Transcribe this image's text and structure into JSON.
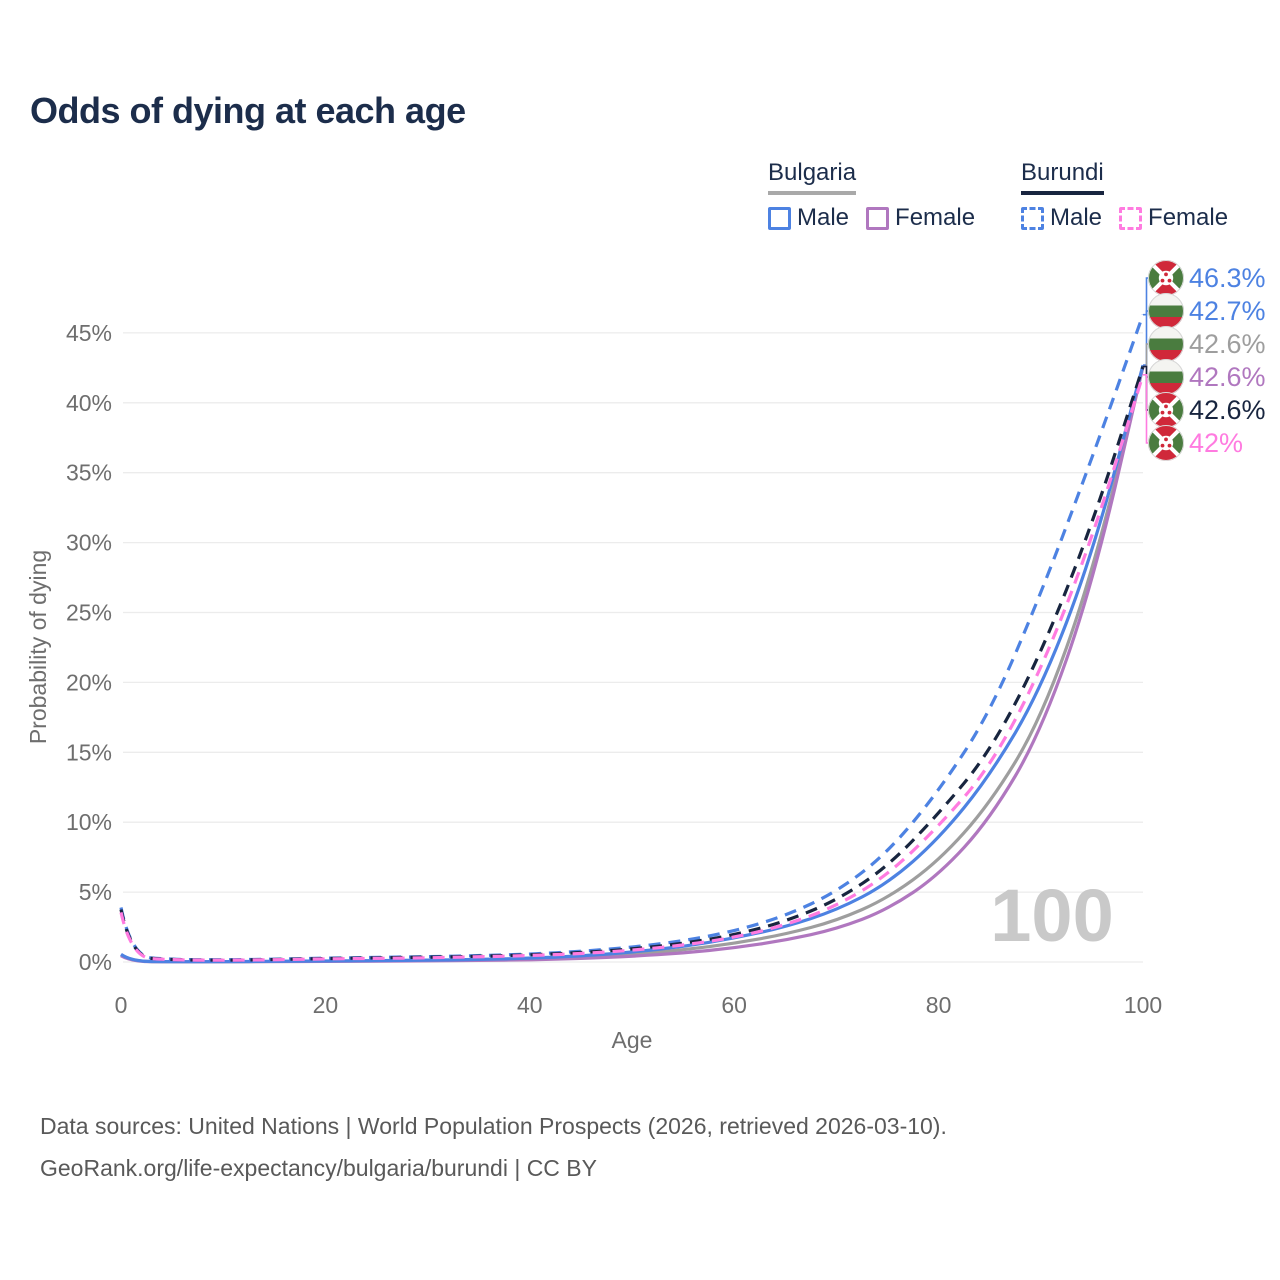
{
  "title": "Odds of dying at each age",
  "colors": {
    "blue": "#4d82e2",
    "purple": "#b077bf",
    "pink": "#ff7be0",
    "navy": "#18253f",
    "gray_line": "#9e9e9e",
    "grid": "#ececec",
    "axis_text": "#6e6e6e",
    "heading_text": "#1c2d4b",
    "watermark": "#c9c9c9",
    "footer_text": "#595959",
    "flag_white": "#f4f4f1",
    "flag_green": "#4a7c3f",
    "flag_red": "#d0283a"
  },
  "legend": {
    "groups": [
      {
        "name": "Bulgaria",
        "line_style": "solid",
        "underline_color": "#a9a9a9",
        "items": [
          {
            "label": "Male",
            "color": "#4d82e2"
          },
          {
            "label": "Female",
            "color": "#b077bf"
          }
        ]
      },
      {
        "name": "Burundi",
        "line_style": "dashed",
        "underline_color": "#18253f",
        "items": [
          {
            "label": "Male",
            "color": "#4d82e2"
          },
          {
            "label": "Female",
            "color": "#ff7be0"
          }
        ]
      }
    ]
  },
  "chart_data": {
    "type": "line",
    "title": "Odds of dying at each age",
    "xlabel": "Age",
    "ylabel": "Probability of dying",
    "xlim": [
      0,
      100
    ],
    "ylim": [
      0,
      47
    ],
    "x_ticks": [
      0,
      20,
      40,
      60,
      80,
      100
    ],
    "y_ticks": [
      0,
      5,
      10,
      15,
      20,
      25,
      30,
      35,
      40,
      45
    ],
    "grid": "horizontal",
    "watermark": "100",
    "x": [
      0,
      1,
      5,
      10,
      15,
      20,
      25,
      30,
      35,
      40,
      45,
      50,
      55,
      60,
      65,
      70,
      75,
      80,
      85,
      90,
      95,
      100
    ],
    "series": [
      {
        "id": "burundi-male",
        "name": "Burundi Male",
        "flag": "burundi",
        "color": "#4d82e2",
        "dashed": true,
        "end_label": "46.3%",
        "values": [
          3.9,
          0.4,
          0.18,
          0.15,
          0.2,
          0.28,
          0.33,
          0.38,
          0.46,
          0.56,
          0.76,
          1.05,
          1.5,
          2.2,
          3.3,
          5.0,
          7.8,
          12.2,
          17.8,
          26.3,
          36.0,
          46.3
        ]
      },
      {
        "id": "bulgaria-male",
        "name": "Bulgaria Male",
        "flag": "bulgaria",
        "color": "#4d82e2",
        "dashed": false,
        "end_label": "42.7%",
        "values": [
          0.55,
          0.04,
          0.02,
          0.02,
          0.05,
          0.08,
          0.1,
          0.13,
          0.18,
          0.27,
          0.43,
          0.7,
          1.1,
          1.7,
          2.5,
          3.7,
          5.6,
          8.8,
          13.3,
          19.5,
          29.0,
          42.7
        ]
      },
      {
        "id": "bulgaria-overall",
        "name": "Bulgaria (both sexes)",
        "flag": "bulgaria",
        "color": "#9e9e9e",
        "dashed": false,
        "end_label": "42.6%",
        "values": [
          0.5,
          0.035,
          0.018,
          0.016,
          0.04,
          0.06,
          0.08,
          0.1,
          0.14,
          0.21,
          0.33,
          0.55,
          0.86,
          1.33,
          1.98,
          2.95,
          4.55,
          7.2,
          11.3,
          17.3,
          27.6,
          42.6
        ]
      },
      {
        "id": "bulgaria-female",
        "name": "Bulgaria Female",
        "flag": "bulgaria",
        "color": "#b077bf",
        "dashed": false,
        "end_label": "42.6%",
        "values": [
          0.45,
          0.03,
          0.016,
          0.013,
          0.03,
          0.045,
          0.06,
          0.08,
          0.11,
          0.16,
          0.25,
          0.41,
          0.64,
          1.0,
          1.55,
          2.35,
          3.75,
          6.2,
          10.2,
          16.4,
          26.8,
          42.6
        ]
      },
      {
        "id": "burundi-overall",
        "name": "Burundi (both sexes)",
        "flag": "burundi",
        "color": "#18253f",
        "dashed": true,
        "end_label": "42.6%",
        "values": [
          3.75,
          0.36,
          0.16,
          0.13,
          0.18,
          0.25,
          0.29,
          0.34,
          0.41,
          0.5,
          0.67,
          0.92,
          1.32,
          1.93,
          2.9,
          4.4,
          6.8,
          10.6,
          15.0,
          22.0,
          31.2,
          42.6
        ]
      },
      {
        "id": "burundi-female",
        "name": "Burundi Female",
        "flag": "burundi",
        "color": "#ff7be0",
        "dashed": true,
        "end_label": "42%",
        "values": [
          3.55,
          0.33,
          0.15,
          0.12,
          0.16,
          0.22,
          0.26,
          0.3,
          0.37,
          0.46,
          0.6,
          0.84,
          1.2,
          1.75,
          2.63,
          4.0,
          6.2,
          9.7,
          13.9,
          20.8,
          30.2,
          42.0
        ]
      }
    ]
  },
  "footer": {
    "line1": "Data sources: United Nations | World Population Prospects (2026, retrieved 2026-03-10).",
    "line2": "GeoRank.org/life-expectancy/bulgaria/burundi | CC BY"
  }
}
